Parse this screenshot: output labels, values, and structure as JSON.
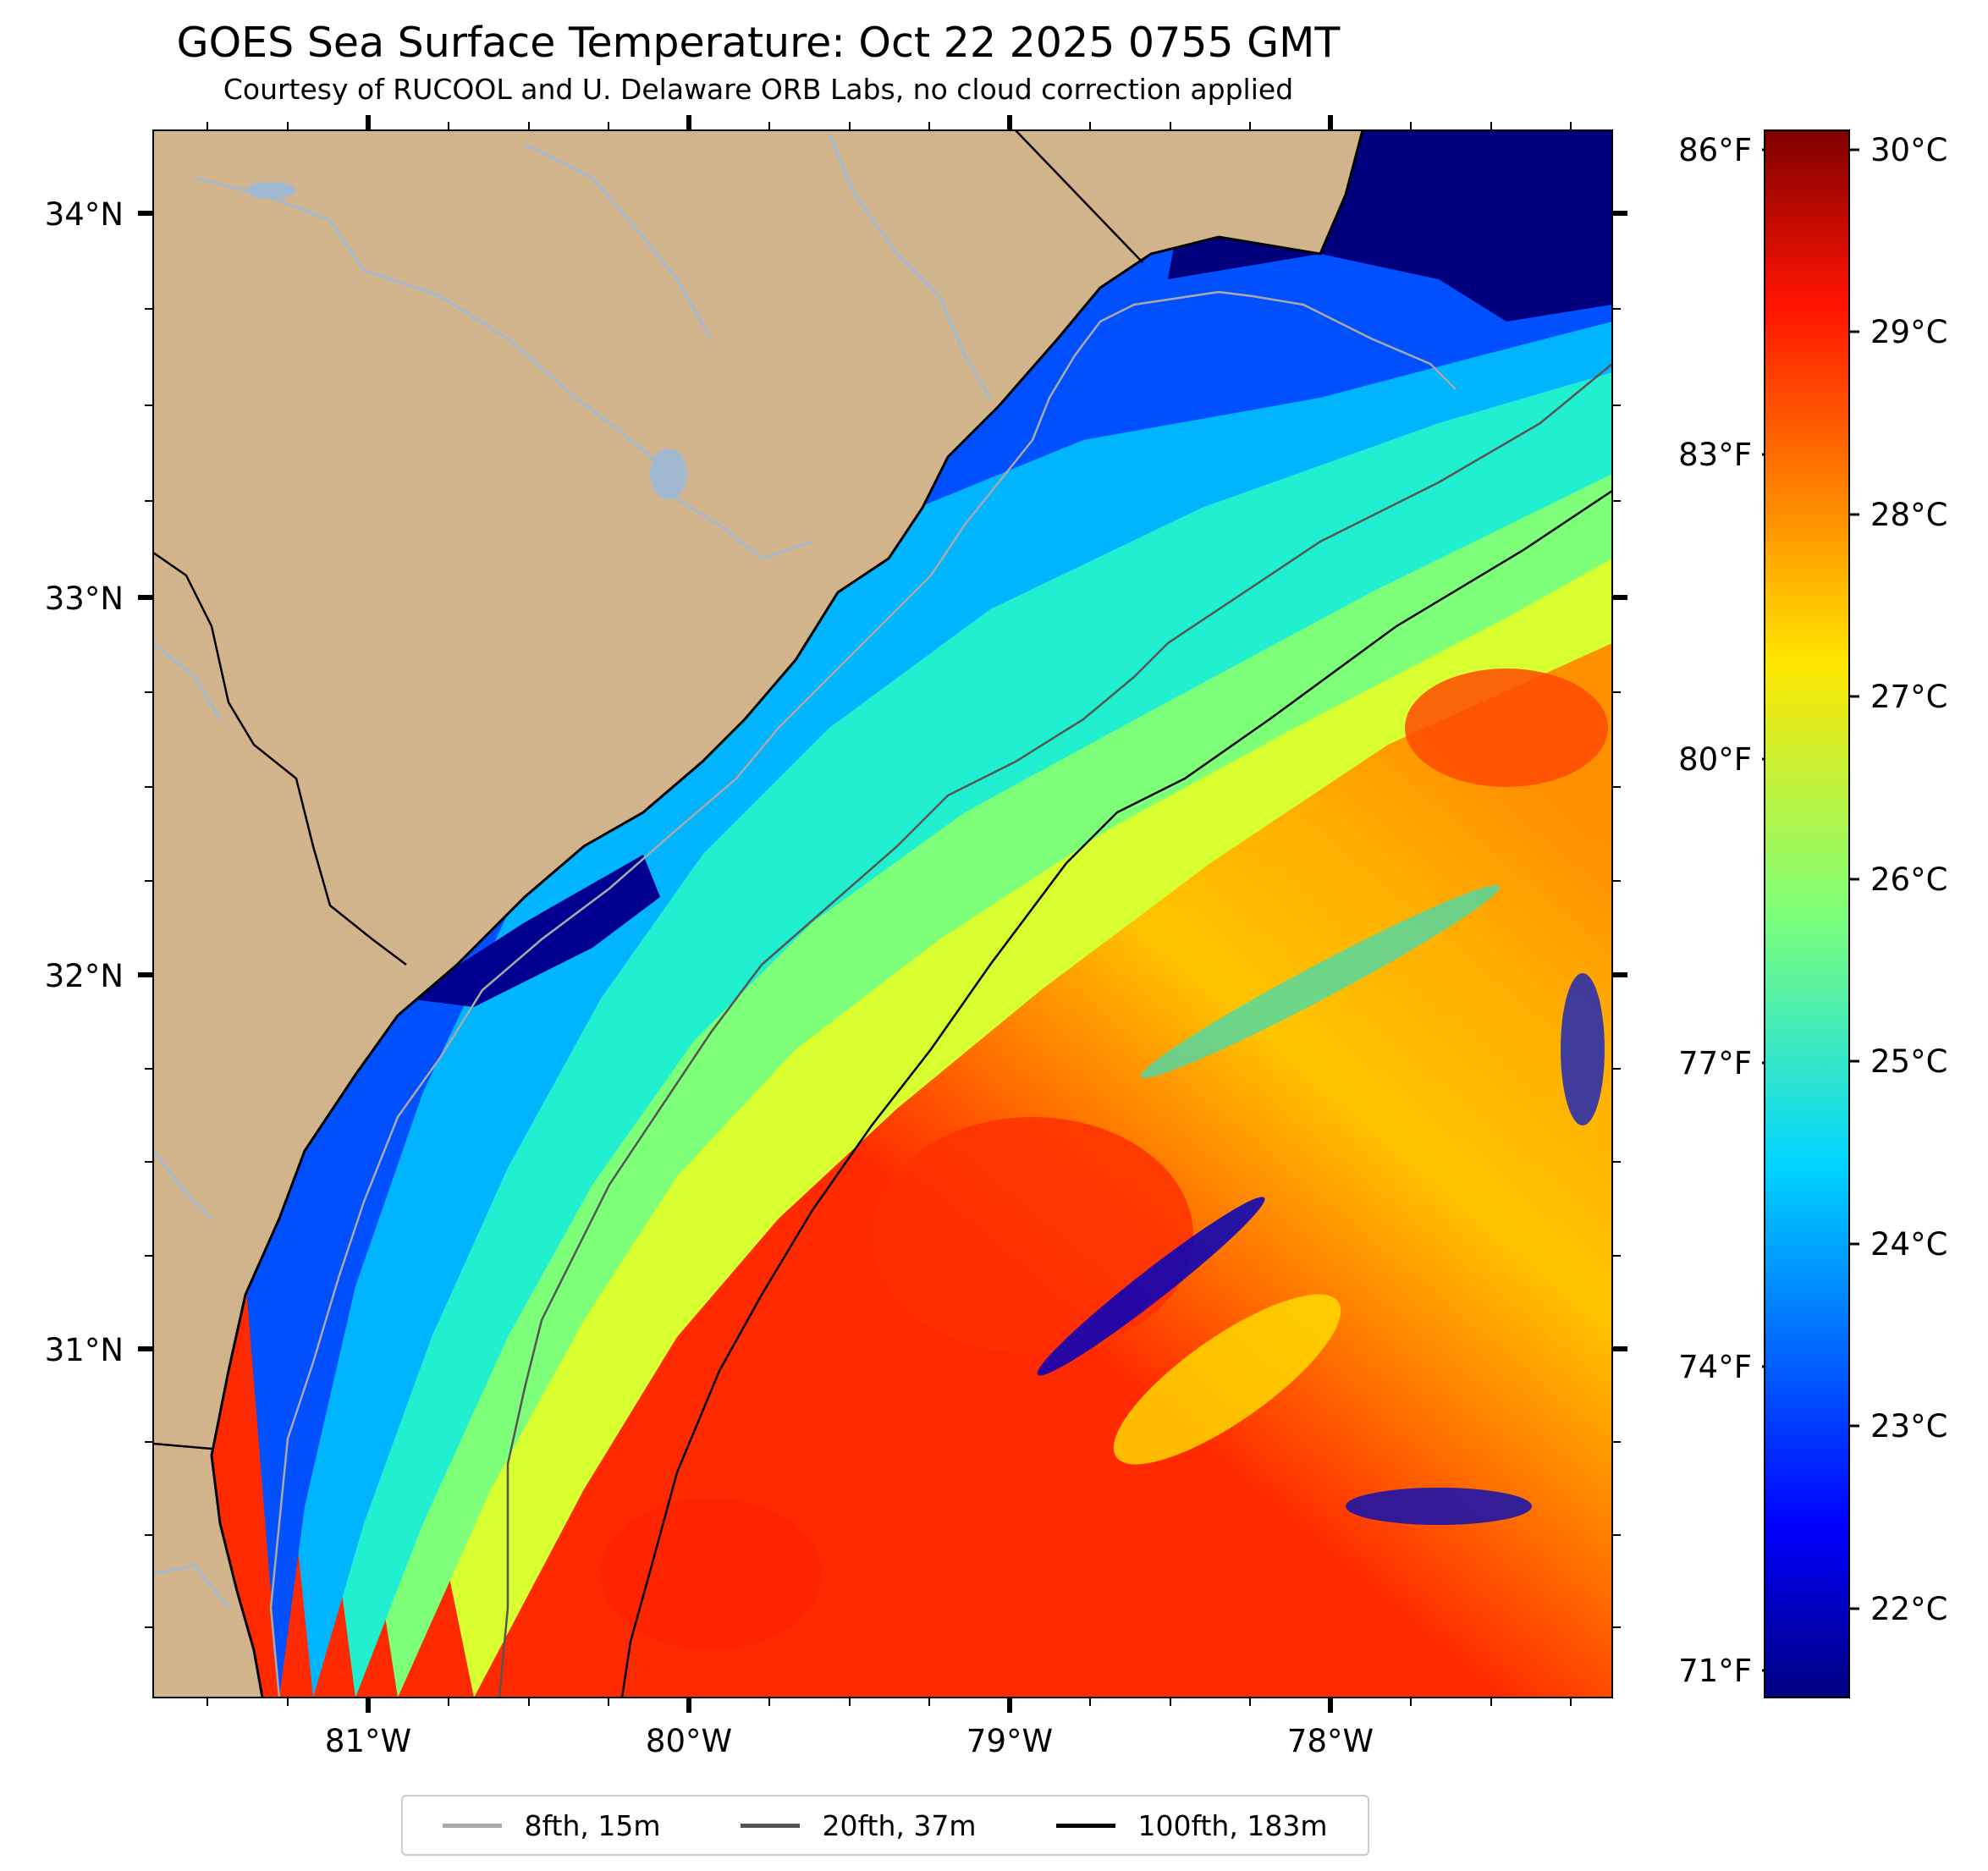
{
  "title": "GOES Sea Surface Temperature: Oct 22 2025 0755 GMT",
  "subtitle": "Courtesy of RUCOOL and U. Delaware ORB Labs, no cloud correction applied",
  "map": {
    "colors": {
      "land": "#d2b48c",
      "coastline": "#000000",
      "rivers": "#a0b8d0",
      "isobath_8fth": "#a9a9a9",
      "isobath_20fth": "#555555",
      "isobath_100fth": "#000000"
    },
    "lat_labels": [
      "34°N",
      "33°N",
      "32°N",
      "31°N"
    ],
    "lon_labels": [
      "81°W",
      "80°W",
      "79°W",
      "78°W"
    ],
    "fahrenheit_labels": [
      "86°F",
      "83°F",
      "80°F",
      "77°F",
      "74°F",
      "71°F"
    ]
  },
  "colorbar": {
    "labels": [
      "30°C",
      "29°C",
      "28°C",
      "27°C",
      "26°C",
      "25°C",
      "24°C",
      "23°C",
      "22°C"
    ],
    "colormap": "jet",
    "range_c": [
      21.5,
      30.1
    ]
  },
  "legend": {
    "items": [
      {
        "label": "8fth, 15m",
        "color": "#a9a9a9"
      },
      {
        "label": "20fth, 37m",
        "color": "#555555"
      },
      {
        "label": "100fth, 183m",
        "color": "#000000"
      }
    ]
  }
}
